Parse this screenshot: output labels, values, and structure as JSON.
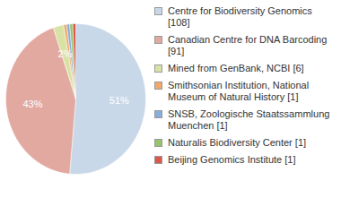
{
  "chart_data": {
    "type": "pie",
    "categories": [
      "Centre for Biodiversity Genomics [108]",
      "Canadian Centre for DNA Barcoding [91]",
      "Mined from GenBank, NCBI [6]",
      "Smithsonian Institution, National Museum of Natural History [1]",
      "SNSB, Zoologische Staatssammlung Muenchen [1]",
      "Naturalis Biodiversity Center [1]",
      "Beijing Genomics Institute [1]"
    ],
    "values": [
      51.4,
      43.4,
      2.4,
      0.7,
      0.7,
      0.7,
      0.7
    ],
    "colors": [
      "#c9d8e8",
      "#e2a9a1",
      "#d9e2a4",
      "#f0a868",
      "#8aaedb",
      "#96c46a",
      "#d9584a"
    ],
    "data_labels": true,
    "value_labels": [
      "51%",
      "43%",
      "2%",
      null,
      null,
      null,
      null
    ],
    "legend": "right"
  }
}
